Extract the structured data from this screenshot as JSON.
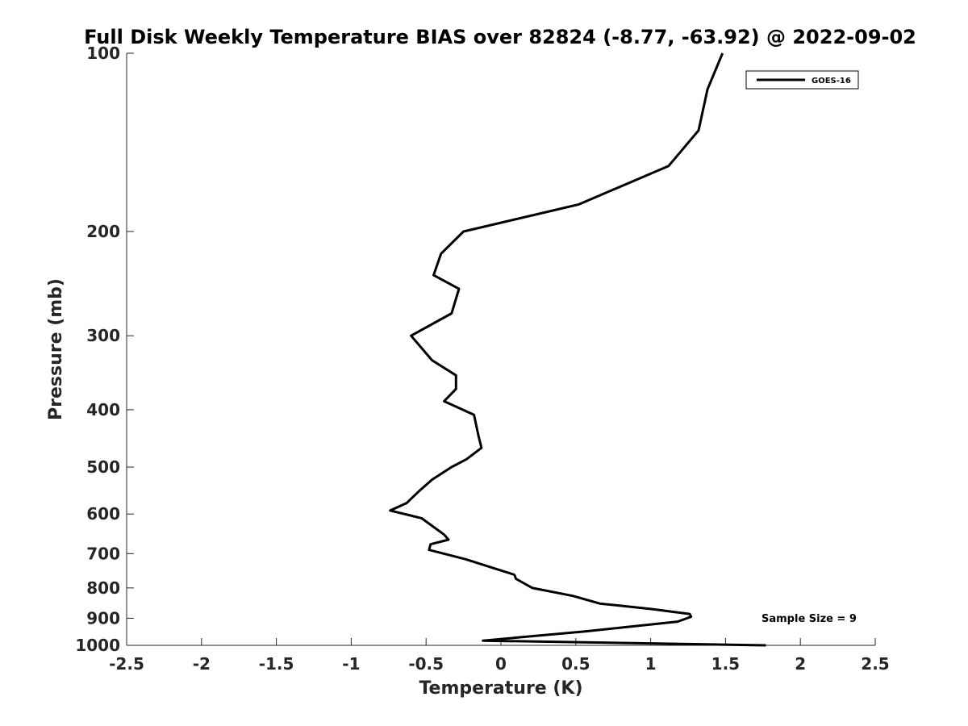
{
  "chart_data": {
    "type": "line",
    "title": "Full Disk Weekly Temperature BIAS over 82824 (-8.77, -63.92) @ 2022-09-02",
    "xlabel": "Temperature (K)",
    "ylabel": "Pressure (mb)",
    "xlim": [
      -2.5,
      2.5
    ],
    "ylim": [
      100,
      1000
    ],
    "y_scale": "log",
    "y_reversed": true,
    "grid": false,
    "legend_position": "top-right",
    "x_ticks": [
      -2.5,
      -2,
      -1.5,
      -1,
      -0.5,
      0,
      0.5,
      1,
      1.5,
      2,
      2.5
    ],
    "x_tick_labels": [
      "-2.5",
      "-2",
      "-1.5",
      "-1",
      "-0.5",
      "0",
      "0.5",
      "1",
      "1.5",
      "2",
      "2.5"
    ],
    "y_ticks": [
      100,
      200,
      300,
      400,
      500,
      600,
      700,
      800,
      900,
      1000
    ],
    "y_tick_labels": [
      "100",
      "200",
      "300",
      "400",
      "500",
      "600",
      "700",
      "800",
      "900",
      "1000"
    ],
    "annotation": "Sample Size = 9",
    "series": [
      {
        "name": "GOES-16",
        "color": "#000000",
        "points": [
          [
            1.48,
            100
          ],
          [
            1.38,
            115
          ],
          [
            1.32,
            135
          ],
          [
            1.12,
            155
          ],
          [
            0.52,
            180
          ],
          [
            -0.25,
            200
          ],
          [
            -0.4,
            218
          ],
          [
            -0.45,
            237
          ],
          [
            -0.28,
            250
          ],
          [
            -0.33,
            275
          ],
          [
            -0.6,
            300
          ],
          [
            -0.46,
            330
          ],
          [
            -0.3,
            350
          ],
          [
            -0.3,
            369
          ],
          [
            -0.38,
            387
          ],
          [
            -0.18,
            408
          ],
          [
            -0.15,
            443
          ],
          [
            -0.13,
            464
          ],
          [
            -0.23,
            485
          ],
          [
            -0.33,
            500
          ],
          [
            -0.46,
            525
          ],
          [
            -0.55,
            550
          ],
          [
            -0.63,
            575
          ],
          [
            -0.74,
            592
          ],
          [
            -0.53,
            610
          ],
          [
            -0.38,
            650
          ],
          [
            -0.35,
            663
          ],
          [
            -0.47,
            675
          ],
          [
            -0.48,
            690
          ],
          [
            -0.24,
            715
          ],
          [
            0.09,
            760
          ],
          [
            0.1,
            772
          ],
          [
            0.21,
            800
          ],
          [
            0.48,
            825
          ],
          [
            0.66,
            850
          ],
          [
            1.0,
            868
          ],
          [
            1.26,
            885
          ],
          [
            1.27,
            895
          ],
          [
            1.18,
            912
          ],
          [
            0.57,
            947
          ],
          [
            -0.12,
            982
          ],
          [
            1.77,
            1000
          ]
        ]
      }
    ]
  }
}
